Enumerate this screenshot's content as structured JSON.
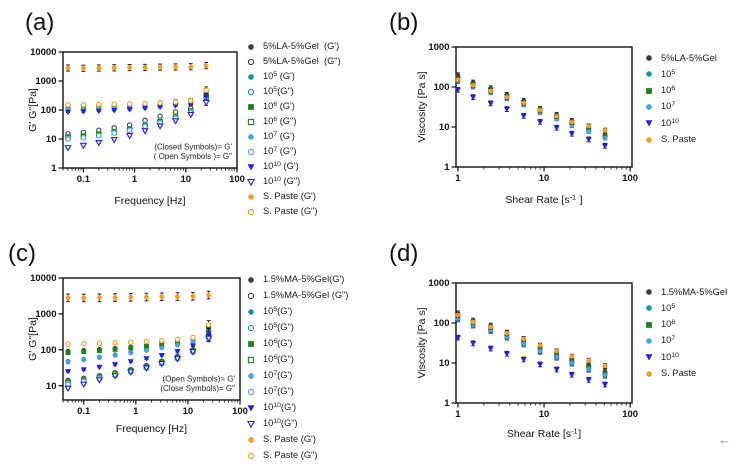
{
  "page": {
    "background": "#ffffff",
    "return_arrow": "←"
  },
  "panels": [
    {
      "label": "(a)"
    },
    {
      "label": "(b)"
    },
    {
      "label": "(c)"
    },
    {
      "label": "(d)"
    }
  ],
  "colors": {
    "gray": "#3d3d3d",
    "teal": "#1a94a4",
    "green": "#1e7d1e",
    "lightblue": "#4aa3e0",
    "blue": "#2222dd",
    "orange": "#f59d2a",
    "frame": "#111111",
    "errorbar": "#1c1c1c"
  },
  "chart_data": [
    {
      "panel": "a",
      "type": "scatter",
      "x_scale": "log",
      "y_scale": "log",
      "xlabel": "Frequency [Hz]",
      "ylabel": "G' G\"[Pa]",
      "xlim": [
        0.04,
        100
      ],
      "ylim": [
        1,
        10000
      ],
      "xticks": [
        0.1,
        1,
        10,
        100
      ],
      "yticks": [
        1,
        10,
        100,
        1000,
        10000
      ],
      "annotation": [
        "(Closed Symbols)= G'",
        "( Open Symbols )= G\""
      ],
      "x": [
        0.05,
        0.1,
        0.2,
        0.4,
        0.8,
        1.6,
        3.15,
        6.3,
        12.5,
        25
      ],
      "series": [
        {
          "name": "5%LA-5%Gel  (G')",
          "marker": "circle",
          "open": false,
          "color": "#3d3d3d",
          "err": 0.05,
          "err_last": 0.3,
          "values": [
            135,
            139,
            144,
            150,
            158,
            168,
            182,
            200,
            155,
            280
          ]
        },
        {
          "name": "5%LA-5%Gel  (G\")",
          "marker": "circle",
          "open": true,
          "color": "#3d3d3d",
          "err": 0.05,
          "err_last": 0.25,
          "values": [
            15,
            17,
            20,
            24,
            30,
            44,
            60,
            85,
            115,
            240
          ]
        },
        {
          "name": "10^{5} (G')",
          "marker": "circle",
          "open": false,
          "color": "#1a94a4",
          "err": 0.05,
          "err_last": 0.3,
          "values": [
            120,
            123,
            127,
            132,
            140,
            150,
            163,
            180,
            200,
            420
          ]
        },
        {
          "name": "10^{5}(G\")",
          "marker": "circle",
          "open": true,
          "color": "#1a94a4",
          "err": 0.05,
          "err_last": 0.25,
          "values": [
            12,
            13,
            15,
            18,
            23,
            31,
            43,
            62,
            95,
            300
          ]
        },
        {
          "name": "10^{6} (G')",
          "marker": "square",
          "open": false,
          "color": "#1e7d1e",
          "err": 0.05,
          "err_last": 0.3,
          "values": [
            112,
            115,
            119,
            124,
            131,
            141,
            153,
            170,
            215,
            380
          ]
        },
        {
          "name": "10^{6} (G\")",
          "marker": "square",
          "open": true,
          "color": "#1e7d1e",
          "err": 0.05,
          "err_last": 0.25,
          "values": [
            11,
            12,
            14,
            17,
            21,
            28,
            39,
            57,
            90,
            260
          ]
        },
        {
          "name": "10^{7} (G')",
          "marker": "circle",
          "open": false,
          "color": "#4aa3e0",
          "err": 0.05,
          "err_last": 0.3,
          "values": [
            105,
            108,
            112,
            117,
            124,
            134,
            146,
            162,
            185,
            340
          ]
        },
        {
          "name": "10^{7} (G\")",
          "marker": "circle",
          "open": true,
          "color": "#4aa3e0",
          "err": 0.05,
          "err_last": 0.25,
          "values": [
            10,
            11,
            13,
            16,
            20,
            27,
            36,
            52,
            82,
            230
          ]
        },
        {
          "name": "10^{10} (G')",
          "marker": "tri",
          "open": false,
          "color": "#2222dd",
          "err": 0.05,
          "err_last": 0.3,
          "values": [
            85,
            88,
            92,
            97,
            104,
            114,
            126,
            142,
            165,
            290
          ]
        },
        {
          "name": "10^{10} (G\")",
          "marker": "tri",
          "open": true,
          "color": "#2222dd",
          "err": 0.05,
          "err_last": 0.25,
          "values": [
            5,
            6,
            7.5,
            9.5,
            13,
            19,
            28,
            42,
            70,
            180
          ]
        },
        {
          "name": "S. Paste (G')",
          "marker": "circle",
          "open": false,
          "color": "#f59d2a",
          "err": 0.28,
          "values": [
            2800,
            2750,
            2800,
            2850,
            2900,
            2950,
            3000,
            3050,
            3100,
            3400
          ]
        },
        {
          "name": "S. Paste (G\")",
          "marker": "circle",
          "open": true,
          "color": "#f59d2a",
          "err": 0.1,
          "err_last": 0.3,
          "values": [
            150,
            152,
            155,
            158,
            162,
            168,
            176,
            188,
            210,
            480
          ]
        }
      ]
    },
    {
      "panel": "b",
      "type": "scatter",
      "x_scale": "log",
      "y_scale": "log",
      "xlabel": "Shear Rate [s^{-1} ]",
      "ylabel": "Viscosity [Pa s]",
      "xlim": [
        0.95,
        105
      ],
      "ylim": [
        1,
        1000
      ],
      "xticks": [
        1,
        10,
        100
      ],
      "yticks": [
        1,
        10,
        100,
        1000
      ],
      "x": [
        1,
        1.5,
        2.4,
        3.7,
        5.8,
        9,
        14,
        21,
        33,
        51
      ],
      "series": [
        {
          "name": "5%LA-5%Gel",
          "marker": "circle",
          "open": false,
          "color": "#3d3d3d",
          "err": 0.16,
          "values": [
            195,
            128,
            92,
            63,
            45,
            28,
            20,
            14,
            9.8,
            6.4
          ]
        },
        {
          "name": "10^{5}",
          "marker": "circle",
          "open": false,
          "color": "#1a94a4",
          "err": 0.12,
          "values": [
            148,
            108,
            78,
            54,
            38,
            24.5,
            17,
            11.8,
            8.3,
            5.6
          ]
        },
        {
          "name": "10^{6}",
          "marker": "square",
          "open": false,
          "color": "#1e7d1e",
          "err": 0.12,
          "values": [
            160,
            115,
            84,
            58,
            41,
            26,
            18.2,
            12.6,
            8.9,
            6.0
          ]
        },
        {
          "name": "10^{7}",
          "marker": "circle",
          "open": false,
          "color": "#4aa3e0",
          "err": 0.12,
          "values": [
            138,
            101,
            73,
            51,
            36,
            23,
            16,
            11,
            7.8,
            5.3
          ]
        },
        {
          "name": "10^{10}",
          "marker": "tri",
          "open": false,
          "color": "#2222dd",
          "err": 0.15,
          "values": [
            85,
            56,
            39,
            28,
            19,
            13.5,
            9.6,
            6.8,
            4.9,
            3.4
          ]
        },
        {
          "name": "S. Paste",
          "marker": "circle",
          "open": false,
          "color": "#f59d2a",
          "err": 0.14,
          "values": [
            152,
            110,
            80,
            56,
            40,
            26.5,
            18.6,
            13.2,
            10.5,
            8.2
          ]
        }
      ]
    },
    {
      "panel": "c",
      "type": "scatter",
      "x_scale": "log",
      "y_scale": "log",
      "xlabel": "Frequency [Hz]",
      "ylabel": "G' G\"[Pa]",
      "xlim": [
        0.04,
        100
      ],
      "ylim": [
        4,
        10000
      ],
      "xticks": [
        0.1,
        1,
        10,
        100
      ],
      "yticks": [
        10,
        100,
        1000,
        10000
      ],
      "annotation": [
        "(Open Symbols)= G'",
        "(Close Symbols)= G\""
      ],
      "x": [
        0.05,
        0.1,
        0.2,
        0.4,
        0.8,
        1.6,
        3.15,
        6.3,
        12.5,
        25
      ],
      "series": [
        {
          "name": "1.5%MA-5%Gel(G')",
          "marker": "circle",
          "open": false,
          "color": "#3d3d3d",
          "err": 0.05,
          "err_last": 0.3,
          "values": [
            92,
            97,
            103,
            110,
            120,
            132,
            148,
            168,
            200,
            420
          ]
        },
        {
          "name": "1.5%MA-5%Gel (G\")",
          "marker": "circle",
          "open": true,
          "color": "#3d3d3d",
          "err": 0.05,
          "err_last": 0.25,
          "values": [
            14,
            16,
            19,
            23,
            28,
            36,
            48,
            66,
            100,
            260
          ]
        },
        {
          "name": "10^{5}(G')",
          "marker": "circle",
          "open": false,
          "color": "#1a94a4",
          "err": 0.05,
          "err_last": 0.3,
          "values": [
            48,
            55,
            63,
            73,
            85,
            99,
            117,
            140,
            175,
            360
          ]
        },
        {
          "name": "10^{5}(G\")",
          "marker": "circle",
          "open": true,
          "color": "#1a94a4",
          "err": 0.05,
          "err_last": 0.25,
          "values": [
            13,
            15,
            18,
            22,
            27,
            34,
            45,
            62,
            95,
            250
          ]
        },
        {
          "name": "10^{6}(G')",
          "marker": "square",
          "open": false,
          "color": "#1e7d1e",
          "err": 0.05,
          "err_last": 0.3,
          "values": [
            84,
            89,
            95,
            103,
            113,
            125,
            140,
            160,
            195,
            390
          ]
        },
        {
          "name": "10^{6}(G\")",
          "marker": "square",
          "open": true,
          "color": "#1e7d1e",
          "err": 0.05,
          "err_last": 0.25,
          "values": [
            12,
            14,
            17,
            21,
            26,
            33,
            44,
            60,
            92,
            240
          ]
        },
        {
          "name": "10^{7}(G')",
          "marker": "circle",
          "open": false,
          "color": "#4aa3e0",
          "err": 0.05,
          "err_last": 0.3,
          "values": [
            45,
            52,
            60,
            70,
            82,
            96,
            113,
            136,
            170,
            330
          ]
        },
        {
          "name": "10^{7}(G\")",
          "marker": "circle",
          "open": true,
          "color": "#4aa3e0",
          "err": 0.05,
          "err_last": 0.25,
          "values": [
            11,
            13,
            16,
            19,
            24,
            31,
            41,
            56,
            86,
            220
          ]
        },
        {
          "name": "10^{10}(G')",
          "marker": "tri",
          "open": false,
          "color": "#2222dd",
          "err": 0.05,
          "err_last": 0.3,
          "values": [
            25,
            28,
            33,
            39,
            47,
            57,
            70,
            90,
            130,
            290
          ]
        },
        {
          "name": "10^{10}(G\")",
          "marker": "tri",
          "open": true,
          "color": "#2222dd",
          "err": 0.05,
          "err_last": 0.25,
          "values": [
            8.5,
            11,
            14.5,
            19,
            24,
            31,
            41,
            56,
            88,
            210
          ]
        },
        {
          "name": "S. Paste (G')",
          "marker": "circle",
          "open": false,
          "color": "#f59d2a",
          "err": 0.28,
          "values": [
            2800,
            2780,
            2820,
            2860,
            2900,
            2950,
            3000,
            3050,
            3100,
            3350
          ]
        },
        {
          "name": "S. Paste (G\")",
          "marker": "circle",
          "open": true,
          "color": "#f59d2a",
          "err": 0.1,
          "err_last": 0.3,
          "values": [
            145,
            148,
            152,
            157,
            163,
            170,
            180,
            195,
            220,
            500
          ]
        }
      ]
    },
    {
      "panel": "d",
      "type": "scatter",
      "x_scale": "log",
      "y_scale": "log",
      "xlabel": "Shear Rate [s^{-1}]",
      "ylabel": "Viscosity [Pa s]",
      "xlim": [
        0.95,
        105
      ],
      "ylim": [
        1,
        1000
      ],
      "xticks": [
        1,
        10,
        100
      ],
      "yticks": [
        1,
        10,
        100,
        1000
      ],
      "x": [
        1,
        1.5,
        2.4,
        3.7,
        5.8,
        9,
        14,
        21,
        33,
        51
      ],
      "series": [
        {
          "name": "1.5%MA-5%Gel",
          "marker": "circle",
          "open": false,
          "color": "#3d3d3d",
          "err": 0.18,
          "values": [
            170,
            112,
            84,
            56,
            39,
            26,
            18.5,
            13,
            8.8,
            6.0
          ]
        },
        {
          "name": "10^{5}",
          "marker": "circle",
          "open": false,
          "color": "#1a94a4",
          "err": 0.12,
          "values": [
            120,
            84,
            61,
            42,
            28.5,
            18.5,
            13.2,
            9.4,
            6.6,
            4.7
          ]
        },
        {
          "name": "10^{6}",
          "marker": "square",
          "open": false,
          "color": "#1e7d1e",
          "err": 0.12,
          "values": [
            150,
            100,
            74,
            50,
            34,
            22.5,
            16,
            11.2,
            7.8,
            5.5
          ]
        },
        {
          "name": "10^{7}",
          "marker": "circle",
          "open": false,
          "color": "#4aa3e0",
          "err": 0.12,
          "values": [
            130,
            90,
            66,
            45,
            30.5,
            20,
            14.2,
            10,
            7.0,
            5.0
          ]
        },
        {
          "name": "10^{10}",
          "marker": "tri",
          "open": false,
          "color": "#2222dd",
          "err": 0.15,
          "values": [
            43,
            31,
            23,
            17,
            12.3,
            9.2,
            6.9,
            5.1,
            3.8,
            2.9
          ]
        },
        {
          "name": "S. Paste",
          "marker": "circle",
          "open": false,
          "color": "#f59d2a",
          "err": 0.14,
          "values": [
            158,
            106,
            79,
            55,
            40,
            27.5,
            19.8,
            14.5,
            11.5,
            8.5
          ]
        }
      ]
    }
  ]
}
